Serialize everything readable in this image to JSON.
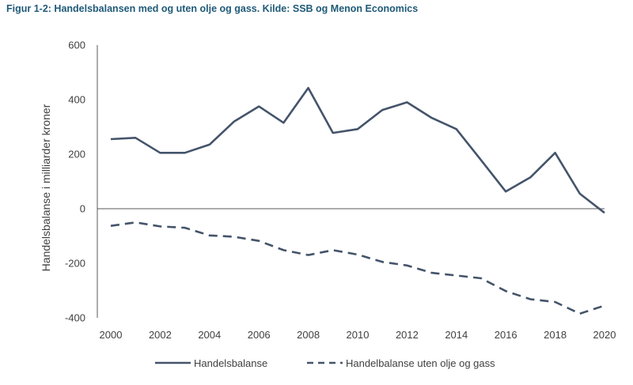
{
  "figure": {
    "title": "Figur 1-2: Handelsbalansen med og uten olje og gass. Kilde: SSB og Menon Economics"
  },
  "colors": {
    "series": "#44546a",
    "axis": "#595959",
    "text": "#404040",
    "title": "#1f5a78"
  },
  "chart_data": {
    "type": "line",
    "title": "Figur 1-2: Handelsbalansen med og uten olje og gass. Kilde: SSB og Menon Economics",
    "xlabel": "",
    "ylabel": "Handelsbalanse i milliarder kroner",
    "x": [
      2000,
      2001,
      2002,
      2003,
      2004,
      2005,
      2006,
      2007,
      2008,
      2009,
      2010,
      2011,
      2012,
      2013,
      2014,
      2015,
      2016,
      2017,
      2018,
      2019,
      2020
    ],
    "xticks": [
      "2000",
      "2002",
      "2004",
      "2006",
      "2008",
      "2010",
      "2012",
      "2014",
      "2016",
      "2018",
      "2020"
    ],
    "xtick_values": [
      2000,
      2002,
      2004,
      2006,
      2008,
      2010,
      2012,
      2014,
      2016,
      2018,
      2020
    ],
    "yticks": [
      "600",
      "400",
      "200",
      "0",
      "-200",
      "-400"
    ],
    "ytick_values": [
      600,
      400,
      200,
      0,
      -200,
      -400
    ],
    "xlim": [
      2000,
      2020
    ],
    "ylim": [
      -400,
      600
    ],
    "grid": false,
    "legend_position": "bottom",
    "series": [
      {
        "name": "Handelsbalanse",
        "style": "solid",
        "values": [
          255,
          260,
          205,
          205,
          235,
          320,
          375,
          315,
          443,
          278,
          292,
          362,
          390,
          333,
          292,
          178,
          63,
          115,
          205,
          55,
          -15
        ]
      },
      {
        "name": "Handelbalanse uten olje og gass",
        "style": "dashed",
        "values": [
          -63,
          -50,
          -65,
          -70,
          -98,
          -103,
          -118,
          -152,
          -170,
          -152,
          -168,
          -195,
          -208,
          -235,
          -245,
          -255,
          -302,
          -332,
          -342,
          -385,
          -355
        ]
      }
    ]
  }
}
